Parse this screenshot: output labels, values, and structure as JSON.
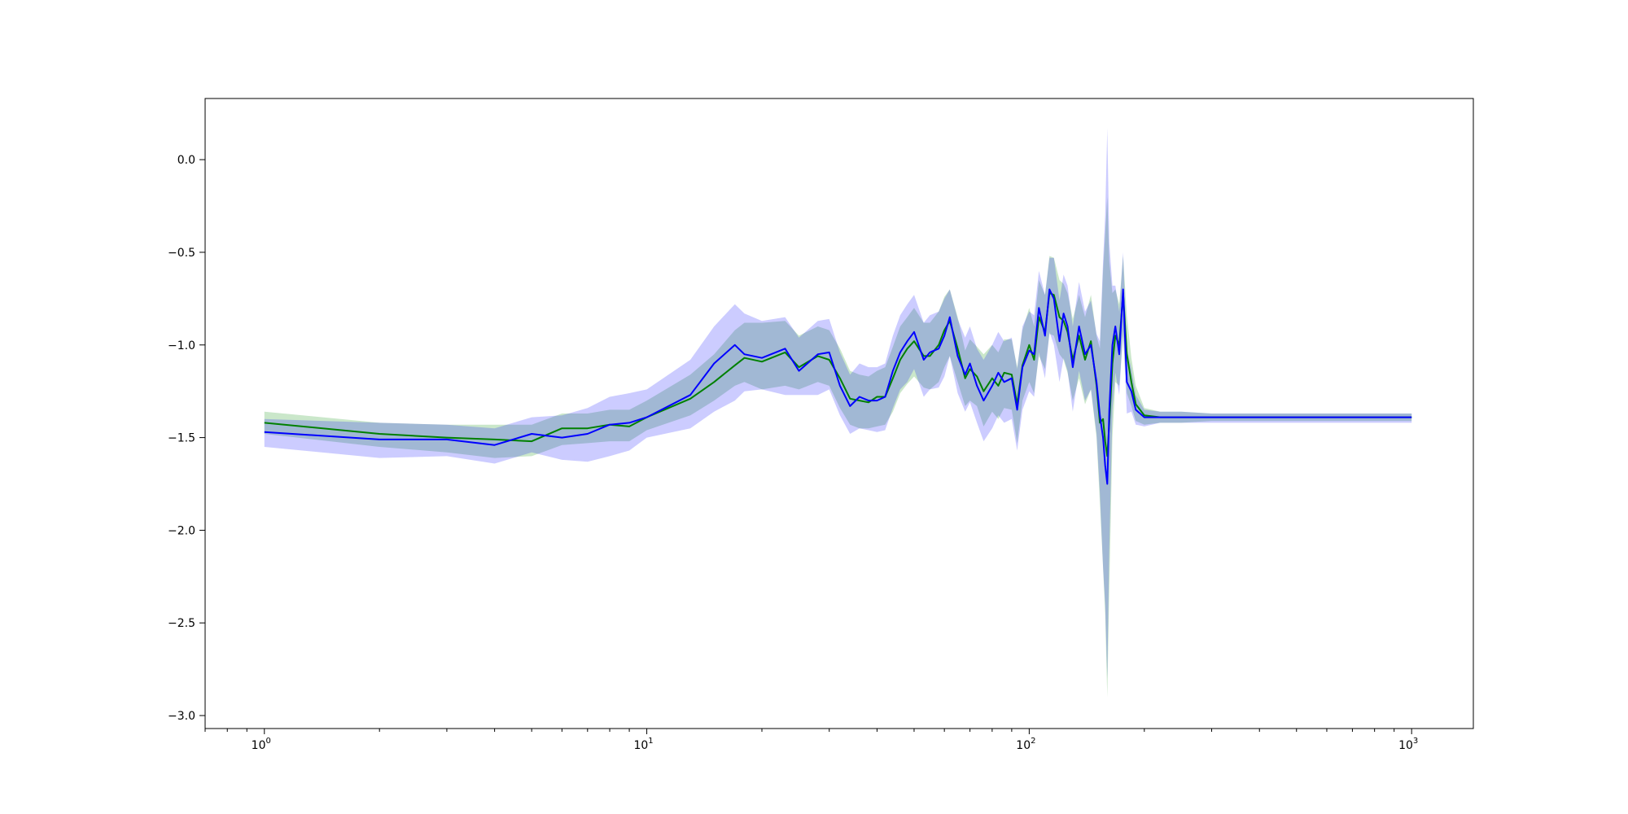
{
  "chart_data": {
    "type": "line",
    "title": "",
    "xlabel": "",
    "ylabel": "",
    "xscale": "log",
    "xlim": [
      0.7,
      1450
    ],
    "ylim": [
      -3.07,
      0.33
    ],
    "grid": false,
    "legend": "none",
    "x_ticks": [
      {
        "base": "10",
        "exp": "0",
        "value": 1
      },
      {
        "base": "10",
        "exp": "1",
        "value": 10
      },
      {
        "base": "10",
        "exp": "2",
        "value": 100
      },
      {
        "base": "10",
        "exp": "3",
        "value": 1000
      }
    ],
    "y_ticks": [
      {
        "label": "0.0",
        "value": 0.0
      },
      {
        "label": "−0.5",
        "value": -0.5
      },
      {
        "label": "−1.0",
        "value": -1.0
      },
      {
        "label": "−1.5",
        "value": -1.5
      },
      {
        "label": "−2.0",
        "value": -2.0
      },
      {
        "label": "−2.5",
        "value": -2.5
      },
      {
        "label": "−3.0",
        "value": -3.0
      }
    ],
    "series": [
      {
        "color": "#008000",
        "band_color": "#2ca02c",
        "band_opacity": 0.25,
        "x": [
          1,
          2,
          3,
          4,
          5,
          6,
          7,
          8,
          9,
          10,
          13,
          15,
          17,
          18,
          20,
          23,
          25,
          28,
          30,
          32,
          34,
          36,
          38,
          40,
          42,
          44,
          46,
          48,
          50,
          53,
          55,
          58,
          60,
          62,
          65,
          68,
          70,
          73,
          76,
          80,
          83,
          86,
          90,
          93,
          96,
          100,
          103,
          106,
          110,
          113,
          116,
          120,
          123,
          126,
          130,
          135,
          140,
          145,
          150,
          153,
          156,
          158,
          160,
          162,
          165,
          168,
          172,
          176,
          180,
          185,
          190,
          200,
          220,
          250,
          300,
          400,
          500,
          700,
          1000
        ],
        "y": [
          -1.42,
          -1.48,
          -1.5,
          -1.51,
          -1.52,
          -1.45,
          -1.45,
          -1.43,
          -1.44,
          -1.39,
          -1.29,
          -1.2,
          -1.11,
          -1.07,
          -1.09,
          -1.04,
          -1.12,
          -1.06,
          -1.08,
          -1.18,
          -1.29,
          -1.3,
          -1.31,
          -1.28,
          -1.28,
          -1.18,
          -1.08,
          -1.02,
          -0.98,
          -1.06,
          -1.06,
          -1.0,
          -0.92,
          -0.87,
          -1.02,
          -1.18,
          -1.13,
          -1.17,
          -1.25,
          -1.18,
          -1.22,
          -1.15,
          -1.16,
          -1.32,
          -1.11,
          -1.0,
          -1.08,
          -0.85,
          -0.93,
          -0.72,
          -0.73,
          -0.85,
          -0.87,
          -0.93,
          -1.08,
          -0.95,
          -1.08,
          -0.98,
          -1.22,
          -1.42,
          -1.4,
          -1.52,
          -1.6,
          -1.42,
          -1.1,
          -0.95,
          -1.0,
          -0.72,
          -1.05,
          -1.2,
          -1.32,
          -1.38,
          -1.39,
          -1.39,
          -1.39,
          -1.39,
          -1.39,
          -1.39,
          -1.39
        ],
        "lower": [
          -1.48,
          -1.55,
          -1.58,
          -1.61,
          -1.6,
          -1.54,
          -1.53,
          -1.52,
          -1.52,
          -1.46,
          -1.38,
          -1.3,
          -1.22,
          -1.2,
          -1.24,
          -1.22,
          -1.24,
          -1.2,
          -1.22,
          -1.34,
          -1.43,
          -1.45,
          -1.45,
          -1.44,
          -1.43,
          -1.36,
          -1.26,
          -1.21,
          -1.17,
          -1.23,
          -1.24,
          -1.2,
          -1.12,
          -1.06,
          -1.2,
          -1.33,
          -1.3,
          -1.33,
          -1.44,
          -1.36,
          -1.4,
          -1.34,
          -1.35,
          -1.53,
          -1.3,
          -1.2,
          -1.26,
          -1.06,
          -1.13,
          -0.94,
          -0.95,
          -1.05,
          -1.08,
          -1.15,
          -1.3,
          -1.18,
          -1.32,
          -1.24,
          -1.5,
          -1.85,
          -2.2,
          -2.45,
          -2.9,
          -2.3,
          -1.5,
          -1.2,
          -1.22,
          -0.95,
          -1.26,
          -1.33,
          -1.41,
          -1.43,
          -1.42,
          -1.42,
          -1.41,
          -1.41,
          -1.41,
          -1.41,
          -1.41
        ],
        "upper": [
          -1.36,
          -1.42,
          -1.43,
          -1.43,
          -1.43,
          -1.37,
          -1.37,
          -1.35,
          -1.35,
          -1.3,
          -1.16,
          -1.05,
          -0.92,
          -0.88,
          -0.88,
          -0.87,
          -0.95,
          -0.9,
          -0.92,
          -1.02,
          -1.14,
          -1.16,
          -1.17,
          -1.14,
          -1.12,
          -1.01,
          -0.9,
          -0.85,
          -0.8,
          -0.88,
          -0.88,
          -0.82,
          -0.74,
          -0.7,
          -0.85,
          -1.03,
          -0.97,
          -1.01,
          -1.05,
          -1.0,
          -1.04,
          -0.97,
          -0.97,
          -1.12,
          -0.92,
          -0.8,
          -0.9,
          -0.65,
          -0.73,
          -0.52,
          -0.53,
          -0.65,
          -0.67,
          -0.72,
          -0.86,
          -0.73,
          -0.85,
          -0.73,
          -0.95,
          -1.02,
          -0.6,
          -0.4,
          -0.2,
          -0.55,
          -0.72,
          -0.7,
          -0.78,
          -0.52,
          -0.84,
          -1.07,
          -1.22,
          -1.34,
          -1.36,
          -1.36,
          -1.37,
          -1.37,
          -1.37,
          -1.37,
          -1.37
        ]
      },
      {
        "color": "#0000ff",
        "band_color": "#0000ff",
        "band_opacity": 0.2,
        "x": [
          1,
          2,
          3,
          4,
          5,
          6,
          7,
          8,
          9,
          10,
          13,
          15,
          17,
          18,
          20,
          23,
          25,
          28,
          30,
          32,
          34,
          36,
          38,
          40,
          42,
          44,
          46,
          48,
          50,
          53,
          55,
          58,
          60,
          62,
          65,
          68,
          70,
          73,
          76,
          80,
          83,
          86,
          90,
          93,
          96,
          100,
          103,
          106,
          110,
          113,
          116,
          120,
          123,
          126,
          130,
          135,
          140,
          145,
          150,
          153,
          156,
          158,
          160,
          162,
          165,
          168,
          172,
          176,
          180,
          185,
          190,
          200,
          220,
          250,
          300,
          400,
          500,
          700,
          1000
        ],
        "y": [
          -1.47,
          -1.51,
          -1.51,
          -1.54,
          -1.48,
          -1.5,
          -1.48,
          -1.43,
          -1.42,
          -1.39,
          -1.27,
          -1.1,
          -1.0,
          -1.05,
          -1.07,
          -1.02,
          -1.14,
          -1.05,
          -1.04,
          -1.22,
          -1.33,
          -1.28,
          -1.3,
          -1.3,
          -1.28,
          -1.14,
          -1.04,
          -0.98,
          -0.93,
          -1.08,
          -1.04,
          -1.02,
          -0.95,
          -0.85,
          -1.06,
          -1.16,
          -1.1,
          -1.22,
          -1.3,
          -1.22,
          -1.15,
          -1.2,
          -1.18,
          -1.35,
          -1.12,
          -1.03,
          -1.05,
          -0.8,
          -0.95,
          -0.7,
          -0.75,
          -0.98,
          -0.83,
          -0.9,
          -1.12,
          -0.9,
          -1.05,
          -1.0,
          -1.2,
          -1.38,
          -1.5,
          -1.65,
          -1.75,
          -1.35,
          -1.0,
          -0.9,
          -1.05,
          -0.7,
          -1.2,
          -1.25,
          -1.35,
          -1.39,
          -1.39,
          -1.39,
          -1.39,
          -1.39,
          -1.39,
          -1.39,
          -1.39
        ],
        "lower": [
          -1.55,
          -1.61,
          -1.6,
          -1.64,
          -1.58,
          -1.62,
          -1.63,
          -1.6,
          -1.57,
          -1.5,
          -1.45,
          -1.36,
          -1.3,
          -1.25,
          -1.24,
          -1.27,
          -1.27,
          -1.27,
          -1.24,
          -1.38,
          -1.48,
          -1.45,
          -1.46,
          -1.47,
          -1.46,
          -1.34,
          -1.24,
          -1.2,
          -1.13,
          -1.28,
          -1.24,
          -1.23,
          -1.17,
          -1.06,
          -1.26,
          -1.36,
          -1.31,
          -1.42,
          -1.52,
          -1.45,
          -1.38,
          -1.42,
          -1.4,
          -1.57,
          -1.35,
          -1.25,
          -1.28,
          -1.04,
          -1.18,
          -0.93,
          -1.0,
          -1.2,
          -1.07,
          -1.14,
          -1.36,
          -1.14,
          -1.3,
          -1.24,
          -1.48,
          -1.8,
          -2.2,
          -2.4,
          -2.8,
          -2.1,
          -1.35,
          -1.15,
          -1.27,
          -0.92,
          -1.37,
          -1.36,
          -1.43,
          -1.44,
          -1.42,
          -1.42,
          -1.42,
          -1.42,
          -1.42,
          -1.42,
          -1.42
        ],
        "upper": [
          -1.4,
          -1.42,
          -1.43,
          -1.45,
          -1.39,
          -1.38,
          -1.34,
          -1.28,
          -1.26,
          -1.24,
          -1.08,
          -0.9,
          -0.78,
          -0.83,
          -0.87,
          -0.85,
          -0.96,
          -0.87,
          -0.86,
          -1.04,
          -1.16,
          -1.1,
          -1.12,
          -1.12,
          -1.1,
          -0.95,
          -0.84,
          -0.78,
          -0.73,
          -0.88,
          -0.84,
          -0.82,
          -0.75,
          -0.7,
          -0.86,
          -0.96,
          -0.9,
          -1.02,
          -1.08,
          -1.0,
          -0.93,
          -0.98,
          -0.96,
          -1.13,
          -0.9,
          -0.82,
          -0.84,
          -0.6,
          -0.73,
          -0.53,
          -0.53,
          -0.76,
          -0.62,
          -0.68,
          -0.9,
          -0.66,
          -0.82,
          -0.76,
          -0.94,
          -0.98,
          -0.55,
          -0.3,
          0.17,
          -0.45,
          -0.68,
          -0.68,
          -0.82,
          -0.5,
          -1.02,
          -1.13,
          -1.27,
          -1.35,
          -1.36,
          -1.36,
          -1.37,
          -1.37,
          -1.37,
          -1.37,
          -1.37
        ]
      }
    ]
  }
}
